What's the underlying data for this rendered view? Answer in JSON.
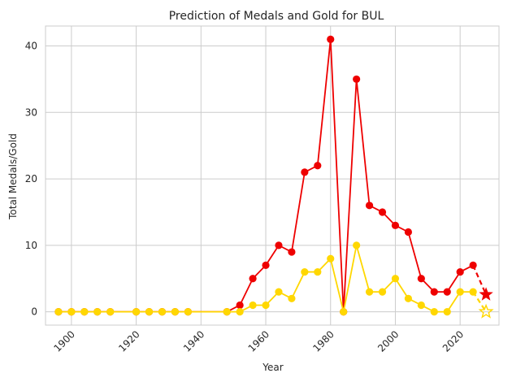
{
  "chart_data": {
    "type": "line",
    "title": "Prediction of Medals and Gold for BUL",
    "xlabel": "Year",
    "ylabel": "Total Medals/Gold",
    "xlim": [
      1892,
      2032
    ],
    "ylim": [
      -2,
      43
    ],
    "x_ticks": [
      1900,
      1920,
      1940,
      1960,
      1980,
      2000,
      2020
    ],
    "y_ticks": [
      0,
      10,
      20,
      30,
      40
    ],
    "grid": true,
    "colors": {
      "medals": "#ee0000",
      "gold": "#ffd700",
      "grid": "#cccccc",
      "axes": "#cccccc",
      "background": "#ffffff"
    },
    "x": [
      1896,
      1900,
      1904,
      1908,
      1912,
      1920,
      1924,
      1928,
      1932,
      1936,
      1948,
      1952,
      1956,
      1960,
      1964,
      1968,
      1972,
      1976,
      1980,
      1984,
      1988,
      1992,
      1996,
      2000,
      2004,
      2008,
      2012,
      2016,
      2020,
      2024
    ],
    "series": [
      {
        "key": "medals",
        "values": [
          0,
          0,
          0,
          0,
          0,
          0,
          0,
          0,
          0,
          0,
          0,
          1,
          5,
          7,
          10,
          9,
          21,
          22,
          41,
          0,
          35,
          16,
          15,
          13,
          12,
          5,
          3,
          3,
          6,
          7
        ]
      },
      {
        "key": "gold",
        "values": [
          0,
          0,
          0,
          0,
          0,
          0,
          0,
          0,
          0,
          0,
          0,
          0,
          1,
          1,
          3,
          2,
          6,
          6,
          8,
          0,
          10,
          3,
          3,
          5,
          2,
          1,
          0,
          0,
          3,
          3
        ]
      }
    ],
    "predictions": [
      {
        "key": "medals",
        "from": [
          2024,
          7
        ],
        "to": [
          2028,
          2.6
        ],
        "marker": "star"
      },
      {
        "key": "gold",
        "from": [
          2024,
          3
        ],
        "to": [
          2028,
          0
        ],
        "marker": "star"
      }
    ]
  }
}
